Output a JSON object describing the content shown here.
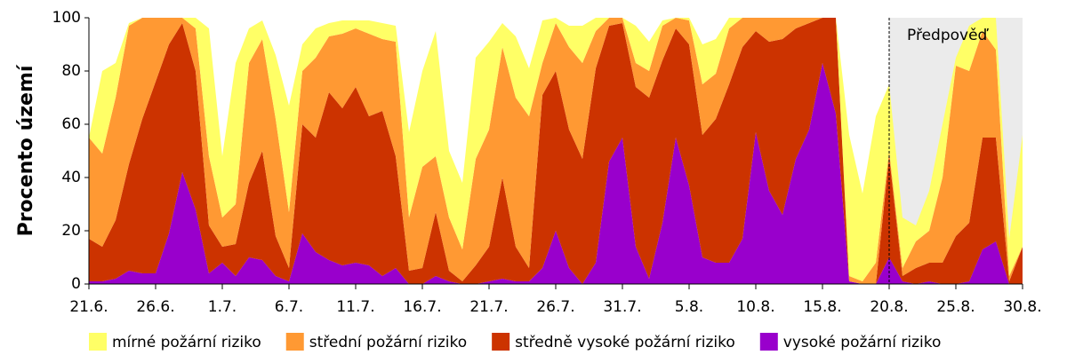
{
  "chart_data": {
    "type": "stacked-area",
    "y_label": "Procento území",
    "categories": [
      "21.6.",
      null,
      null,
      null,
      null,
      "26.6.",
      null,
      null,
      null,
      null,
      "1.7.",
      null,
      null,
      null,
      null,
      "6.7.",
      null,
      null,
      null,
      null,
      "11.7.",
      null,
      null,
      null,
      null,
      "16.7.",
      null,
      null,
      null,
      null,
      "21.7.",
      null,
      null,
      null,
      null,
      "26.7.",
      null,
      null,
      null,
      null,
      "31.7.",
      null,
      null,
      null,
      null,
      "5.8.",
      null,
      null,
      null,
      null,
      "10.8.",
      null,
      null,
      null,
      null,
      "15.8.",
      null,
      null,
      null,
      null,
      "20.8.",
      null,
      null,
      null,
      null,
      "25.8.",
      null,
      null,
      null,
      null,
      "30.8."
    ],
    "ylim": [
      0,
      100
    ],
    "yticks": [
      0,
      20,
      40,
      60,
      80,
      100
    ],
    "forecast_start": "20.8.",
    "forecast_label": "Předpověď",
    "forecast_color": "#ebebeb",
    "series": [
      {
        "name": "mírné požární riziko",
        "color": "#ffff66",
        "values": [
          0,
          31,
          13,
          1,
          0,
          0,
          0,
          0,
          4,
          48,
          23,
          53,
          13,
          7,
          24,
          40,
          10,
          11,
          5,
          5,
          3,
          5,
          6,
          6,
          32,
          36,
          47,
          25,
          25,
          38,
          33,
          9,
          23,
          18,
          16,
          2,
          8,
          14,
          5,
          0,
          0,
          14,
          11,
          2,
          0,
          1,
          15,
          13,
          4,
          0,
          0,
          0,
          0,
          0,
          0,
          0,
          0,
          53,
          33,
          55,
          25,
          19,
          6,
          15,
          20,
          3,
          17,
          5,
          12,
          14,
          42
        ]
      },
      {
        "name": "střední požární riziko",
        "color": "#ff9933",
        "values": [
          38,
          35,
          46,
          52,
          38,
          24,
          10,
          2,
          16,
          26,
          11,
          15,
          45,
          42,
          44,
          21,
          20,
          30,
          21,
          28,
          22,
          31,
          27,
          43,
          20,
          38,
          21,
          20,
          12,
          40,
          44,
          49,
          56,
          57,
          12,
          18,
          31,
          36,
          14,
          3,
          2,
          9,
          10,
          13,
          4,
          9,
          19,
          17,
          21,
          11,
          5,
          9,
          8,
          4,
          2,
          0,
          0,
          2,
          1,
          8,
          2,
          3,
          10,
          12,
          32,
          64,
          57,
          40,
          33,
          2,
          0
        ]
      },
      {
        "name": "středně vysoké požární riziko",
        "color": "#cc3300",
        "values": [
          16,
          13,
          22,
          40,
          58,
          72,
          71,
          56,
          52,
          18,
          6,
          12,
          28,
          41,
          15,
          5,
          41,
          43,
          63,
          59,
          66,
          56,
          62,
          42,
          5,
          6,
          24,
          4,
          1,
          7,
          13,
          38,
          13,
          5,
          65,
          60,
          52,
          47,
          73,
          51,
          43,
          60,
          68,
          61,
          41,
          53,
          46,
          54,
          67,
          72,
          38,
          56,
          66,
          49,
          40,
          17,
          36,
          0,
          0,
          0,
          38,
          2,
          6,
          7,
          8,
          18,
          22,
          42,
          39,
          1,
          14
        ]
      },
      {
        "name": "vysoké požární riziko",
        "color": "#9900cc",
        "values": [
          1,
          1,
          2,
          5,
          4,
          4,
          19,
          42,
          28,
          4,
          8,
          3,
          10,
          9,
          3,
          1,
          19,
          12,
          9,
          7,
          8,
          7,
          3,
          6,
          0,
          0,
          3,
          1,
          0,
          0,
          1,
          2,
          1,
          1,
          6,
          20,
          6,
          0,
          8,
          46,
          55,
          14,
          2,
          23,
          55,
          37,
          10,
          8,
          8,
          17,
          57,
          35,
          26,
          47,
          58,
          83,
          64,
          1,
          0,
          0,
          10,
          1,
          0,
          1,
          0,
          0,
          1,
          13,
          16,
          0,
          0
        ]
      }
    ]
  }
}
